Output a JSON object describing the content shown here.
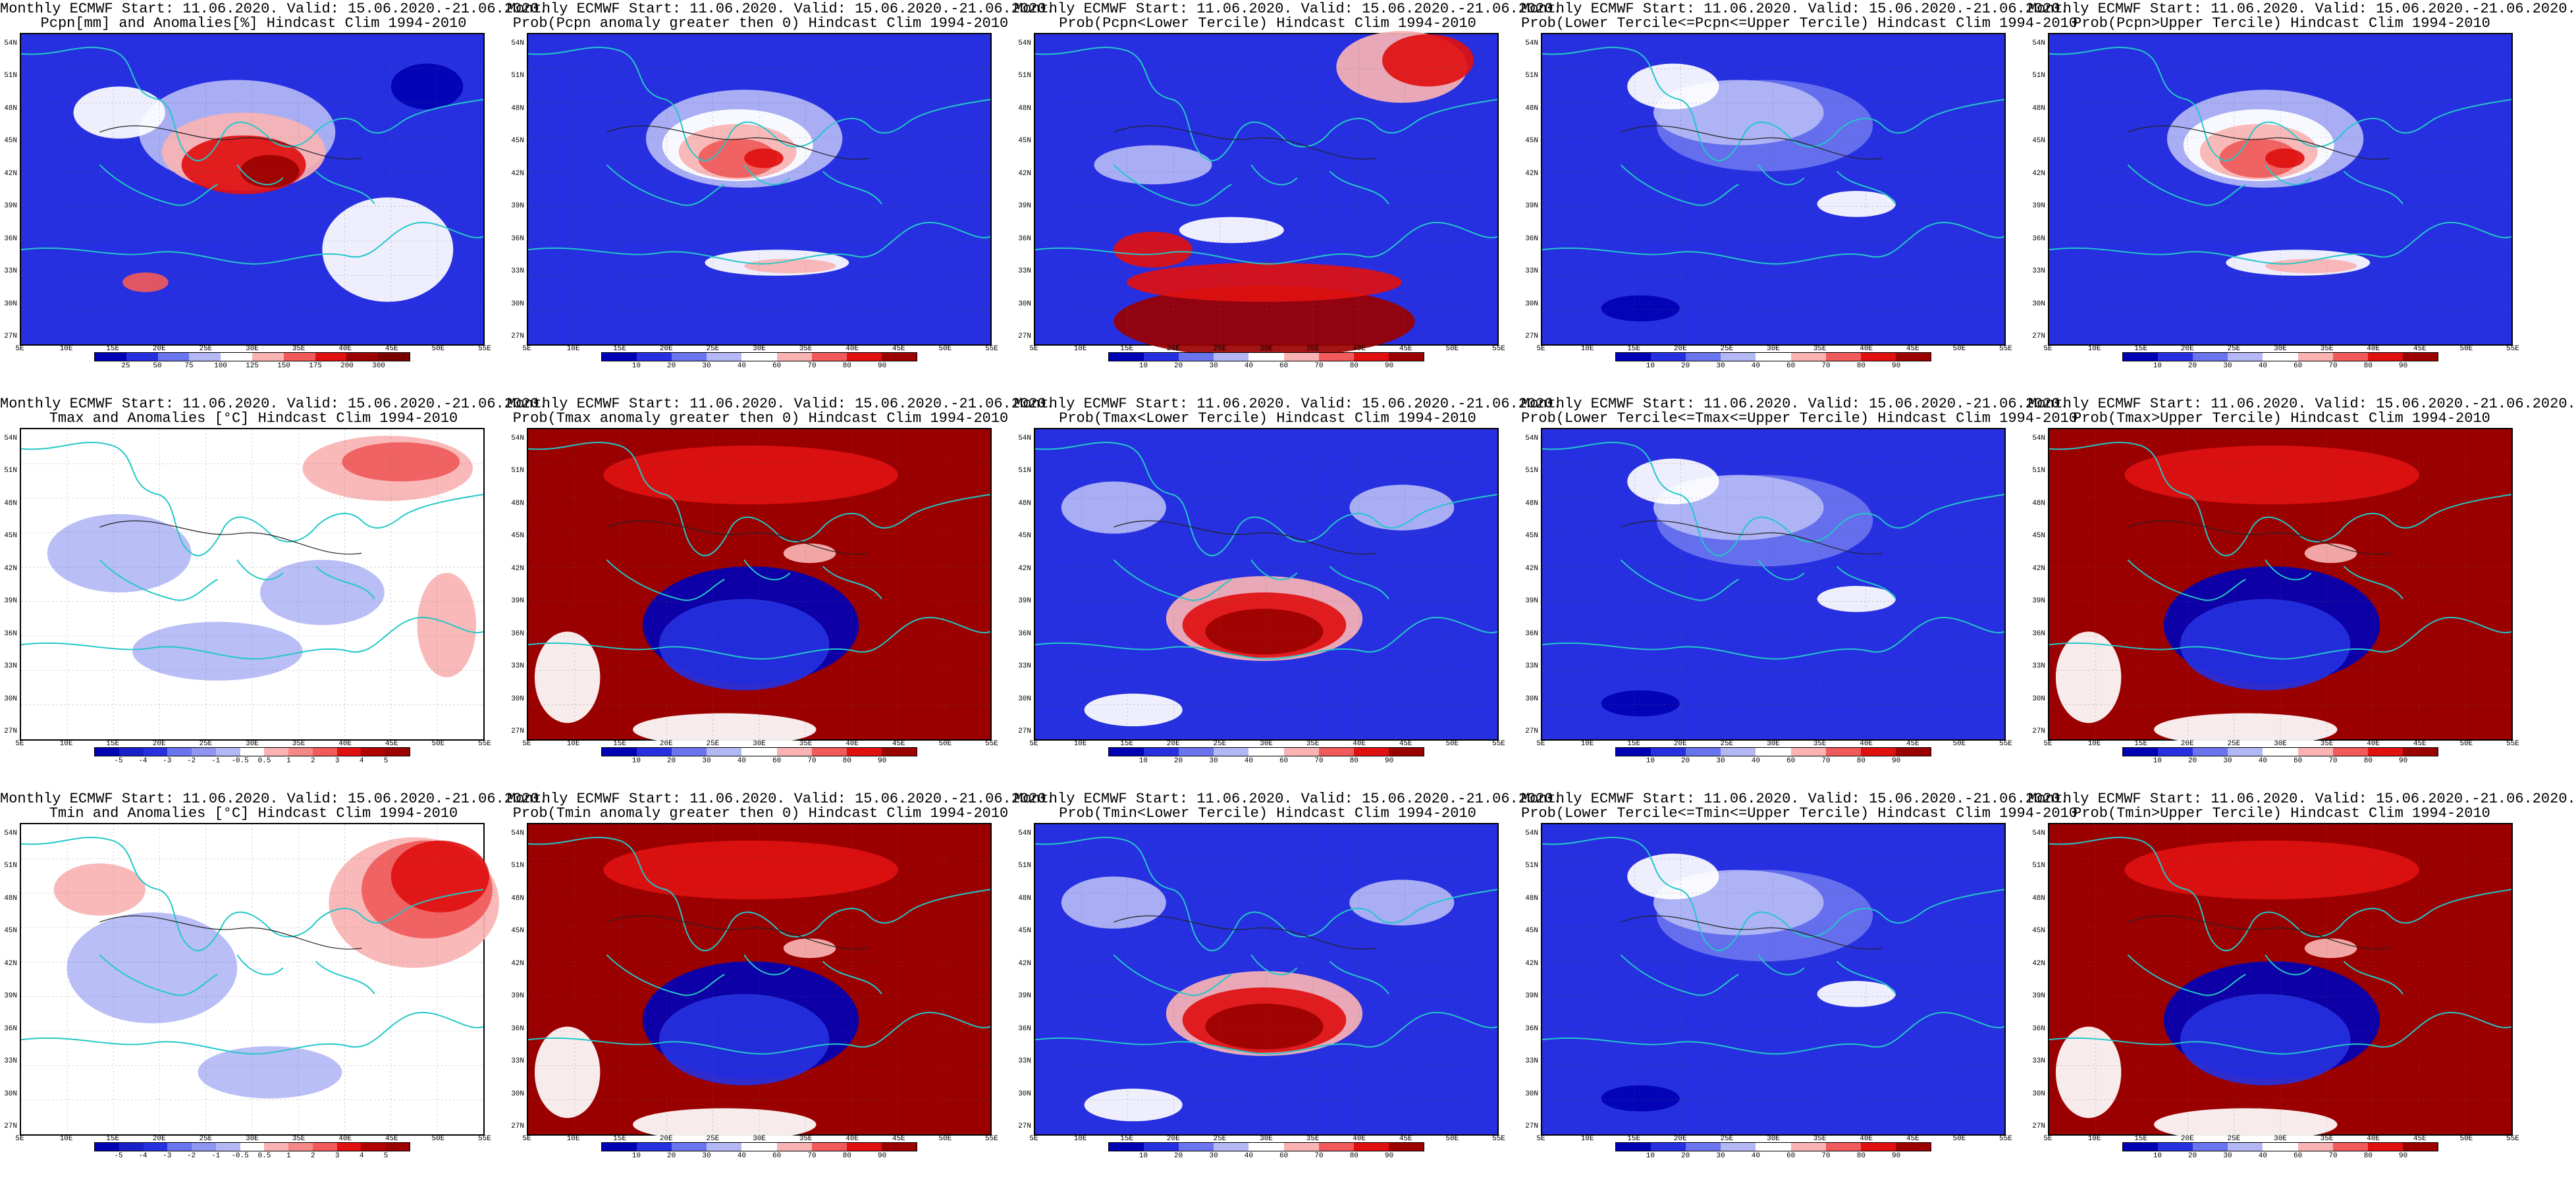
{
  "colors": {
    "red_dark": "#9b0000",
    "red": "#e01010",
    "red_mid": "#f05a5a",
    "red_light": "#f9b3b3",
    "white": "#ffffff",
    "blue_light": "#b3b8f5",
    "blue_mid": "#6a74ee",
    "blue": "#2630e0",
    "blue_dark": "#0000b4",
    "coast": "#22c8c8"
  },
  "axes": {
    "lat_labels": [
      "54N",
      "51N",
      "48N",
      "45N",
      "42N",
      "39N",
      "36N",
      "33N",
      "30N",
      "27N"
    ],
    "lon_labels": [
      "5E",
      "10E",
      "15E",
      "20E",
      "25E",
      "30E",
      "35E",
      "40E",
      "45E",
      "50E",
      "55E"
    ]
  },
  "colorbars": {
    "precip": {
      "labels": [
        "25",
        "50",
        "75",
        "100",
        "125",
        "150",
        "175",
        "200",
        "300"
      ],
      "colors": [
        "#0000b4",
        "#2630e0",
        "#6a74ee",
        "#b3b8f5",
        "#ffffff",
        "#f9b3b3",
        "#f05a5a",
        "#e01010",
        "#9b0000",
        "#7a0000"
      ]
    },
    "prob": {
      "labels": [
        "10",
        "20",
        "30",
        "40",
        "60",
        "70",
        "80",
        "90"
      ],
      "colors": [
        "#0000b4",
        "#2630e0",
        "#6a74ee",
        "#b3b8f5",
        "#ffffff",
        "#f9b3b3",
        "#f05a5a",
        "#e01010",
        "#9b0000"
      ]
    },
    "temp": {
      "labels": [
        "-5",
        "-4",
        "-3",
        "-2",
        "-1",
        "-0.5",
        "0.5",
        "1",
        "2",
        "3",
        "4",
        "5"
      ],
      "colors": [
        "#0000b4",
        "#1a20c8",
        "#2630e0",
        "#6a74ee",
        "#8f95f0",
        "#b3b8f5",
        "#ffffff",
        "#f9b3b3",
        "#f58787",
        "#f05a5a",
        "#e01010",
        "#b00000",
        "#9b0000"
      ]
    }
  },
  "panels": [
    {
      "line1": "Monthly ECMWF Start: 11.06.2020. Valid: 15.06.2020.-21.06.2020.",
      "line2": "Pcpn[mm] and Anomalies[%] Hindcast Clim 1994-2010",
      "cbar": "precip",
      "pattern": "mix_red_center"
    },
    {
      "line1": "Monthly ECMWF Start: 11.06.2020. Valid: 15.06.2020.-21.06.2020.",
      "line2": "Prob(Pcpn anomaly greater then 0) Hindcast Clim 1994-2010",
      "cbar": "prob",
      "pattern": "blue_red_center"
    },
    {
      "line1": "Monthly ECMWF Start: 11.06.2020. Valid: 15.06.2020.-21.06.2020.",
      "line2": "Prob(Pcpn<Lower Tercile) Hindcast Clim 1994-2010",
      "cbar": "prob",
      "pattern": "blue_red_south"
    },
    {
      "line1": "Monthly ECMWF Start: 11.06.2020. Valid: 15.06.2020.-21.06.2020.",
      "line2": "Prob(Lower Tercile<=Pcpn<=Upper Tercile) Hindcast Clim 1994-2010",
      "cbar": "prob",
      "pattern": "blue_white"
    },
    {
      "line1": "Monthly ECMWF Start: 11.06.2020. Valid: 15.06.2020.-21.06.2020.",
      "line2": "Prob(Pcpn>Upper Tercile) Hindcast Clim 1994-2010",
      "cbar": "prob",
      "pattern": "blue_red_center"
    },
    {
      "line1": "Monthly ECMWF Start: 11.06.2020. Valid: 15.06.2020.-21.06.2020.",
      "line2": "Tmax and Anomalies [°C] Hindcast Clim 1994-2010",
      "cbar": "temp",
      "pattern": "pale_mix"
    },
    {
      "line1": "Monthly ECMWF Start: 11.06.2020. Valid: 15.06.2020.-21.06.2020.",
      "line2": "Prob(Tmax anomaly greater then 0) Hindcast Clim 1994-2010",
      "cbar": "prob",
      "pattern": "red_north_blue_center"
    },
    {
      "line1": "Monthly ECMWF Start: 11.06.2020. Valid: 15.06.2020.-21.06.2020.",
      "line2": "Prob(Tmax<Lower Tercile) Hindcast Clim 1994-2010",
      "cbar": "prob",
      "pattern": "red_center_blue"
    },
    {
      "line1": "Monthly ECMWF Start: 11.06.2020. Valid: 15.06.2020.-21.06.2020.",
      "line2": "Prob(Lower Tercile<=Tmax<=Upper Tercile) Hindcast Clim 1994-2010",
      "cbar": "prob",
      "pattern": "blue_white"
    },
    {
      "line1": "Monthly ECMWF Start: 11.06.2020. Valid: 15.06.2020.-21.06.2020.",
      "line2": "Prob(Tmax>Upper Tercile) Hindcast Clim 1994-2010",
      "cbar": "prob",
      "pattern": "red_north_blue_center"
    },
    {
      "line1": "Monthly ECMWF Start: 11.06.2020. Valid: 15.06.2020.-21.06.2020.",
      "line2": "Tmin and Anomalies [°C] Hindcast Clim 1994-2010",
      "cbar": "temp",
      "pattern": "red_northeast_pale"
    },
    {
      "line1": "Monthly ECMWF Start: 11.06.2020. Valid: 15.06.2020.-21.06.2020.",
      "line2": "Prob(Tmin anomaly greater then 0) Hindcast Clim 1994-2010",
      "cbar": "prob",
      "pattern": "red_north_blue_center"
    },
    {
      "line1": "Monthly ECMWF Start: 11.06.2020. Valid: 15.06.2020.-21.06.2020.",
      "line2": "Prob(Tmin<Lower Tercile) Hindcast Clim 1994-2010",
      "cbar": "prob",
      "pattern": "red_center_blue"
    },
    {
      "line1": "Monthly ECMWF Start: 11.06.2020. Valid: 15.06.2020.-21.06.2020.",
      "line2": "Prob(Lower Tercile<=Tmin<=Upper Tercile) Hindcast Clim 1994-2010",
      "cbar": "prob",
      "pattern": "blue_white"
    },
    {
      "line1": "Monthly ECMWF Start: 11.06.2020. Valid: 15.06.2020.-21.06.2020.",
      "line2": "Prob(Tmin>Upper Tercile) Hindcast Clim 1994-2010",
      "cbar": "prob",
      "pattern": "red_north_blue_center"
    }
  ]
}
